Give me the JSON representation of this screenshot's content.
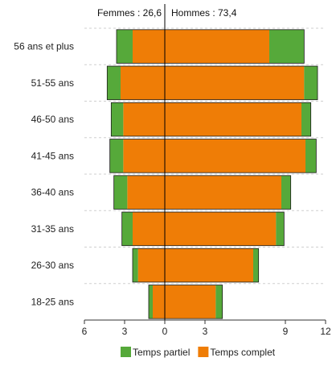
{
  "chart_data": {
    "type": "bar",
    "orientation": "horizontal",
    "layout": "population-pyramid",
    "header_left": "Femmes : 26,6",
    "header_right": "Hommes : 73,4",
    "categories": [
      "56 ans et plus",
      "51-55 ans",
      "46-50 ans",
      "41-45 ans",
      "36-40 ans",
      "31-35 ans",
      "26-30 ans",
      "18-25 ans"
    ],
    "x_ticks": [
      "6",
      "3",
      "0",
      "3",
      "9",
      "12"
    ],
    "x_tick_values": [
      -6,
      -3,
      0,
      3,
      9,
      12
    ],
    "xlim": [
      -6,
      12
    ],
    "series": [
      {
        "name": "Temps partiel",
        "color": "#56a93a",
        "femmes": [
          1.2,
          1.0,
          0.9,
          1.0,
          1.0,
          0.8,
          0.4,
          0.3
        ],
        "hommes": [
          2.6,
          1.0,
          0.7,
          0.8,
          0.7,
          0.6,
          0.4,
          0.5
        ]
      },
      {
        "name": "Temps complet",
        "color": "#ef7d06",
        "femmes": [
          2.4,
          3.3,
          3.1,
          3.1,
          2.8,
          2.4,
          2.0,
          0.9
        ],
        "hommes": [
          7.8,
          10.4,
          10.2,
          10.5,
          8.7,
          8.3,
          6.6,
          3.8
        ]
      }
    ],
    "legend_position": "bottom-center",
    "grid": "horizontal-dashed"
  }
}
